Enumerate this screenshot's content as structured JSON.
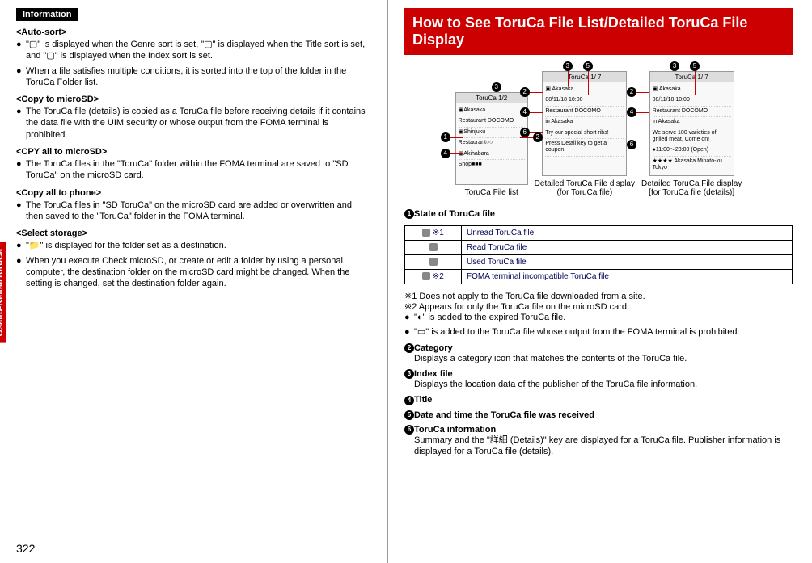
{
  "sidebar": "Osaifu-Keitai/ToruCa",
  "pageNum": "322",
  "info": {
    "tag": "Information",
    "sections": [
      {
        "head": "<Auto-sort>",
        "bullets": [
          "\"▢\" is displayed when the Genre sort is set, \"▢\" is displayed when the Title sort is set, and \"▢\" is displayed when the Index sort is set.",
          "When a file satisfies multiple conditions, it is sorted into the top of the folder in the ToruCa Folder list."
        ]
      },
      {
        "head": "<Copy to microSD>",
        "bullets": [
          "The ToruCa file (details) is copied as a ToruCa file before receiving details if it contains the data file with the UIM security or whose output from the FOMA terminal is prohibited."
        ]
      },
      {
        "head": "<CPY all to microSD>",
        "bullets": [
          "The ToruCa files in the \"ToruCa\" folder within the FOMA terminal are saved to \"SD ToruCa\" on the microSD card."
        ]
      },
      {
        "head": "<Copy all to phone>",
        "bullets": [
          "The ToruCa files in \"SD ToruCa\" on the microSD card are added or overwritten and then saved to the \"ToruCa\" folder in the FOMA terminal."
        ]
      },
      {
        "head": "<Select storage>",
        "bullets": [
          "\"📁\" is displayed for the folder set as a destination.",
          "When you execute Check microSD, or create or edit a folder by using a personal computer, the destination folder on the microSD card might be changed. When the setting is changed, set the destination folder again."
        ]
      }
    ]
  },
  "right": {
    "header": "How to See ToruCa File List/Detailed ToruCa File Display",
    "captions": [
      "ToruCa File list",
      "Detailed ToruCa File display\n(for ToruCa file)",
      "Detailed ToruCa File display\n[for ToruCa file (details)]"
    ],
    "stateHead": "State of ToruCa file",
    "table": [
      {
        "note": "※1",
        "desc": "Unread ToruCa file"
      },
      {
        "note": "",
        "desc": "Read ToruCa file"
      },
      {
        "note": "",
        "desc": "Used ToruCa file"
      },
      {
        "note": "※2",
        "desc": "FOMA terminal incompatible ToruCa file"
      }
    ],
    "notes": [
      "※1 Does not apply to the ToruCa file downloaded from a site.",
      "※2 Appears for only the ToruCa file on the microSD card."
    ],
    "extras": [
      "\"◐\" is added to the expired ToruCa file.",
      "\"▭\" is added to the ToruCa file whose output from the FOMA terminal is prohibited."
    ],
    "items": [
      {
        "n": "2",
        "head": "Category",
        "body": "Displays a category icon that matches the contents of the ToruCa file."
      },
      {
        "n": "3",
        "head": "Index file",
        "body": "Displays the location data of the publisher of the ToruCa file information."
      },
      {
        "n": "4",
        "head": "Title",
        "body": ""
      },
      {
        "n": "5",
        "head": "Date and time the ToruCa file was received",
        "body": ""
      },
      {
        "n": "6",
        "head": "ToruCa information",
        "body": "Summary and the \"詳細 (Details)\" key are displayed for a ToruCa file. Publisher information is displayed for a ToruCa file (details)."
      }
    ],
    "screenData": {
      "s1": {
        "title": "ToruCa   1/2",
        "rows": [
          "▣Akasaka",
          "Restaurant DOCOMO",
          "▣Shinjuku",
          "Restaurant○○",
          "▣Akihabara",
          "Shop■■■"
        ]
      },
      "s2": {
        "title": "ToruCa   1/  7",
        "rows": [
          "▣ Akasaka",
          "  08/11/18 10:00",
          "Restaurant DOCOMO",
          "in Akasaka",
          "Try our special short ribs!",
          "Press Detail key to get a coupon."
        ]
      },
      "s3": {
        "title": "ToruCa   1/  7",
        "rows": [
          "▣ Akasaka",
          "  08/11/18 10:00",
          "Restaurant DOCOMO",
          "in Akasaka",
          "We serve 100 varieties of grilled meat. Come on!",
          "●11:00～23:00 (Open)",
          "★★★★ Akasaka Minato-ku Tokyo"
        ]
      }
    }
  }
}
